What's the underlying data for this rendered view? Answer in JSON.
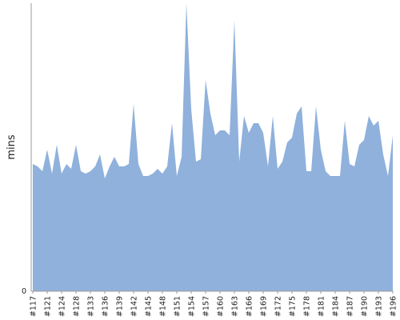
{
  "chart_data": {
    "type": "area",
    "ylabel": "mins",
    "xlabel": "",
    "title": "",
    "ylim": [
      0,
      60
    ],
    "grid": false,
    "legend": "none",
    "color": "#8fb1dc",
    "y_ticks": [
      {
        "value": 0,
        "label": "0"
      }
    ],
    "x_tick_labels": [
      "#117",
      "#121",
      "#124",
      "#128",
      "#133",
      "#136",
      "#139",
      "#142",
      "#145",
      "#148",
      "#151",
      "#154",
      "#157",
      "#160",
      "#163",
      "#166",
      "#169",
      "#172",
      "#175",
      "#178",
      "#181",
      "#184",
      "#187",
      "#190",
      "#193",
      "#196"
    ],
    "x_tick_positions": [
      0,
      3,
      6,
      9,
      12,
      15,
      18,
      21,
      24,
      27,
      30,
      33,
      36,
      39,
      42,
      45,
      48,
      51,
      54,
      57,
      60,
      63,
      66,
      69,
      72,
      75
    ],
    "values": [
      26.5,
      26,
      25,
      29.5,
      24.5,
      30.5,
      24.5,
      26.5,
      25.5,
      30.5,
      25,
      24.5,
      25,
      26,
      28.5,
      23.5,
      26,
      28,
      26,
      26,
      26.5,
      39,
      26.5,
      24,
      24,
      24.5,
      25.5,
      24.5,
      26,
      35,
      24,
      28,
      61,
      38,
      27,
      27.5,
      44,
      37,
      32.5,
      33.5,
      33.5,
      32.5,
      56.5,
      27,
      36.5,
      33,
      35,
      35,
      33,
      26,
      36.5,
      25.5,
      27,
      31,
      32,
      37,
      38.5,
      25,
      25,
      38.5,
      29.5,
      25,
      24,
      24,
      24,
      35.5,
      26.5,
      26,
      30.5,
      31.5,
      36.5,
      34.5,
      35.5,
      28.5,
      24,
      32.5
    ]
  }
}
